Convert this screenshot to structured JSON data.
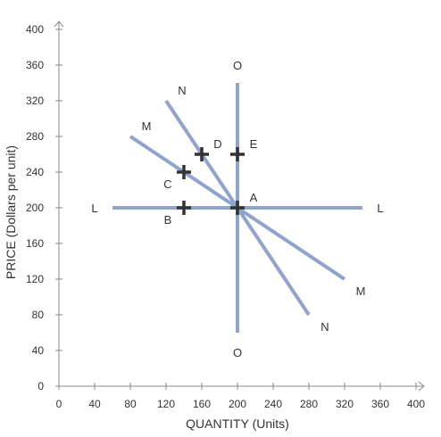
{
  "chart_data": {
    "type": "line",
    "xlabel": "QUANTITY (Units)",
    "ylabel": "PRICE (Dollars per unit)",
    "xlim": [
      0,
      400
    ],
    "ylim": [
      0,
      400
    ],
    "x_ticks": [
      "0",
      "40",
      "80",
      "120",
      "160",
      "200",
      "240",
      "280",
      "320",
      "360",
      "400"
    ],
    "y_ticks": [
      "0",
      "40",
      "80",
      "120",
      "160",
      "200",
      "240",
      "280",
      "320",
      "360",
      "400"
    ],
    "grid": false,
    "colors": {
      "curve": "#8ea4cf",
      "axis": "#888888",
      "marker": "#333333"
    },
    "series": [
      {
        "name": "L",
        "x": [
          60,
          340
        ],
        "y": [
          200,
          200
        ],
        "labels": [
          "L",
          "L"
        ],
        "label_at": [
          [
            40,
            200
          ],
          [
            360,
            200
          ]
        ]
      },
      {
        "name": "M",
        "x": [
          80,
          200,
          320
        ],
        "y": [
          280,
          200,
          120
        ],
        "labels": [
          "M",
          "M"
        ],
        "label_at": [
          [
            98,
            292
          ],
          [
            338,
            107
          ]
        ]
      },
      {
        "name": "N",
        "x": [
          120,
          200,
          280
        ],
        "y": [
          320,
          200,
          80
        ],
        "labels": [
          "N",
          "N"
        ],
        "label_at": [
          [
            138,
            332
          ],
          [
            298,
            67
          ]
        ]
      },
      {
        "name": "O",
        "x": [
          200,
          200
        ],
        "y": [
          340,
          60
        ],
        "labels": [
          "O",
          "O"
        ],
        "label_at": [
          [
            200,
            360
          ],
          [
            200,
            38
          ]
        ]
      }
    ],
    "points": [
      {
        "label": "A",
        "x": 200,
        "y": 200,
        "label_at": [
          218,
          212
        ]
      },
      {
        "label": "B",
        "x": 140,
        "y": 200,
        "label_at": [
          122,
          187
        ]
      },
      {
        "label": "C",
        "x": 140,
        "y": 240,
        "label_at": [
          122,
          227
        ]
      },
      {
        "label": "D",
        "x": 160,
        "y": 260,
        "label_at": [
          178,
          272
        ]
      },
      {
        "label": "E",
        "x": 200,
        "y": 260,
        "label_at": [
          218,
          272
        ]
      }
    ]
  }
}
